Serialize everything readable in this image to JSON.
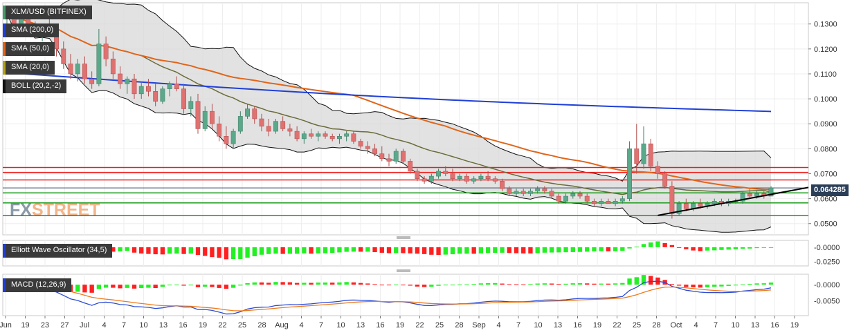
{
  "chart_data": {
    "type": "candlestick",
    "title": "XLM/USD (BITFINEX)",
    "watermark": {
      "fx": "FX",
      "street": "STREET"
    },
    "last_price_label": "0.064285",
    "price_axis": {
      "ylim": [
        0.0455,
        0.1385
      ],
      "ticks": [
        "0.1300",
        "0.1200",
        "0.1100",
        "0.1000",
        "0.0900",
        "0.0800",
        "0.0700",
        "0.0600",
        "0.0500"
      ],
      "tick_values": [
        0.13,
        0.12,
        0.11,
        0.1,
        0.09,
        0.08,
        0.07,
        0.06,
        0.05
      ]
    },
    "x_axis": {
      "labels": [
        "Jun",
        "19",
        "23",
        "27",
        "Jul",
        "4",
        "7",
        "10",
        "13",
        "16",
        "19",
        "22",
        "25",
        "28",
        "Aug",
        "4",
        "7",
        "10",
        "13",
        "16",
        "19",
        "22",
        "25",
        "28",
        "Sep",
        "4",
        "7",
        "10",
        "13",
        "16",
        "19",
        "22",
        "25",
        "28",
        "Oct",
        "4",
        "7",
        "10",
        "13",
        "16",
        "19"
      ]
    },
    "indicators": {
      "sma200": {
        "label": "SMA (200,0)",
        "color": "#1f3fd6"
      },
      "sma50": {
        "label": "SMA (50,0)",
        "color": "#e0651a"
      },
      "sma20": {
        "label": "SMA (20,0)",
        "color": "#6b6b3a"
      },
      "boll": {
        "label": "BOLL (20,2,-2)",
        "color": "#111111"
      }
    },
    "horizontal_levels": {
      "red": [
        0.0725,
        0.0705,
        0.0675
      ],
      "green": [
        0.0623,
        0.0583,
        0.0532
      ],
      "current": 0.0643
    },
    "trendline": {
      "from": [
        0.0533
      ],
      "to": [
        0.0645
      ]
    },
    "candles": [
      [
        0.132,
        0.136,
        0.129,
        0.134
      ],
      [
        0.134,
        0.135,
        0.128,
        0.13
      ],
      [
        0.13,
        0.133,
        0.127,
        0.132
      ],
      [
        0.132,
        0.134,
        0.126,
        0.128
      ],
      [
        0.128,
        0.131,
        0.124,
        0.126
      ],
      [
        0.126,
        0.13,
        0.123,
        0.129
      ],
      [
        0.129,
        0.132,
        0.125,
        0.127
      ],
      [
        0.127,
        0.129,
        0.117,
        0.12
      ],
      [
        0.12,
        0.123,
        0.112,
        0.114
      ],
      [
        0.114,
        0.118,
        0.108,
        0.11
      ],
      [
        0.11,
        0.116,
        0.107,
        0.114
      ],
      [
        0.114,
        0.117,
        0.106,
        0.108
      ],
      [
        0.108,
        0.111,
        0.104,
        0.106
      ],
      [
        0.106,
        0.128,
        0.105,
        0.122
      ],
      [
        0.122,
        0.125,
        0.113,
        0.116
      ],
      [
        0.116,
        0.119,
        0.108,
        0.11
      ],
      [
        0.11,
        0.113,
        0.104,
        0.106
      ],
      [
        0.106,
        0.109,
        0.102,
        0.108
      ],
      [
        0.108,
        0.11,
        0.1,
        0.102
      ],
      [
        0.102,
        0.107,
        0.1,
        0.105
      ],
      [
        0.105,
        0.108,
        0.101,
        0.103
      ],
      [
        0.103,
        0.106,
        0.097,
        0.099
      ],
      [
        0.099,
        0.105,
        0.098,
        0.104
      ],
      [
        0.104,
        0.107,
        0.101,
        0.106
      ],
      [
        0.106,
        0.109,
        0.103,
        0.104
      ],
      [
        0.104,
        0.106,
        0.094,
        0.096
      ],
      [
        0.096,
        0.101,
        0.093,
        0.099
      ],
      [
        0.099,
        0.102,
        0.086,
        0.088
      ],
      [
        0.088,
        0.097,
        0.087,
        0.095
      ],
      [
        0.095,
        0.098,
        0.088,
        0.09
      ],
      [
        0.09,
        0.093,
        0.083,
        0.085
      ],
      [
        0.085,
        0.089,
        0.08,
        0.082
      ],
      [
        0.082,
        0.088,
        0.08,
        0.087
      ],
      [
        0.087,
        0.095,
        0.086,
        0.093
      ],
      [
        0.093,
        0.098,
        0.092,
        0.096
      ],
      [
        0.096,
        0.097,
        0.09,
        0.092
      ],
      [
        0.092,
        0.094,
        0.087,
        0.089
      ],
      [
        0.089,
        0.092,
        0.085,
        0.087
      ],
      [
        0.087,
        0.092,
        0.086,
        0.091
      ],
      [
        0.091,
        0.093,
        0.087,
        0.088
      ],
      [
        0.088,
        0.09,
        0.085,
        0.087
      ],
      [
        0.087,
        0.089,
        0.083,
        0.084
      ],
      [
        0.084,
        0.087,
        0.082,
        0.086
      ],
      [
        0.086,
        0.088,
        0.084,
        0.085
      ],
      [
        0.085,
        0.087,
        0.083,
        0.086
      ],
      [
        0.086,
        0.087,
        0.084,
        0.085
      ],
      [
        0.085,
        0.086,
        0.083,
        0.084
      ],
      [
        0.084,
        0.086,
        0.082,
        0.085
      ],
      [
        0.085,
        0.087,
        0.083,
        0.086
      ],
      [
        0.086,
        0.087,
        0.082,
        0.083
      ],
      [
        0.083,
        0.084,
        0.08,
        0.081
      ],
      [
        0.081,
        0.083,
        0.078,
        0.08
      ],
      [
        0.08,
        0.082,
        0.077,
        0.078
      ],
      [
        0.078,
        0.081,
        0.075,
        0.076
      ],
      [
        0.076,
        0.078,
        0.073,
        0.075
      ],
      [
        0.075,
        0.08,
        0.074,
        0.079
      ],
      [
        0.079,
        0.08,
        0.074,
        0.075
      ],
      [
        0.075,
        0.076,
        0.07,
        0.071
      ],
      [
        0.071,
        0.072,
        0.067,
        0.068
      ],
      [
        0.068,
        0.069,
        0.066,
        0.067
      ],
      [
        0.067,
        0.07,
        0.066,
        0.069
      ],
      [
        0.069,
        0.072,
        0.068,
        0.071
      ],
      [
        0.071,
        0.073,
        0.069,
        0.07
      ],
      [
        0.07,
        0.072,
        0.067,
        0.068
      ],
      [
        0.068,
        0.07,
        0.067,
        0.069
      ],
      [
        0.069,
        0.07,
        0.066,
        0.067
      ],
      [
        0.067,
        0.069,
        0.066,
        0.068
      ],
      [
        0.068,
        0.07,
        0.067,
        0.069
      ],
      [
        0.069,
        0.071,
        0.067,
        0.068
      ],
      [
        0.068,
        0.069,
        0.066,
        0.067
      ],
      [
        0.067,
        0.068,
        0.063,
        0.064
      ],
      [
        0.064,
        0.065,
        0.061,
        0.062
      ],
      [
        0.062,
        0.064,
        0.061,
        0.063
      ],
      [
        0.063,
        0.064,
        0.061,
        0.062
      ],
      [
        0.062,
        0.064,
        0.061,
        0.063
      ],
      [
        0.063,
        0.065,
        0.062,
        0.064
      ],
      [
        0.064,
        0.065,
        0.062,
        0.063
      ],
      [
        0.063,
        0.064,
        0.06,
        0.061
      ],
      [
        0.061,
        0.062,
        0.058,
        0.059
      ],
      [
        0.059,
        0.062,
        0.058,
        0.061
      ],
      [
        0.061,
        0.063,
        0.06,
        0.062
      ],
      [
        0.062,
        0.063,
        0.06,
        0.061
      ],
      [
        0.061,
        0.062,
        0.058,
        0.059
      ],
      [
        0.059,
        0.06,
        0.057,
        0.058
      ],
      [
        0.058,
        0.06,
        0.057,
        0.059
      ],
      [
        0.059,
        0.06,
        0.058,
        0.058
      ],
      [
        0.058,
        0.06,
        0.057,
        0.059
      ],
      [
        0.059,
        0.061,
        0.058,
        0.06
      ],
      [
        0.06,
        0.083,
        0.059,
        0.08
      ],
      [
        0.08,
        0.09,
        0.07,
        0.074
      ],
      [
        0.074,
        0.089,
        0.072,
        0.082
      ],
      [
        0.082,
        0.084,
        0.071,
        0.073
      ],
      [
        0.073,
        0.075,
        0.068,
        0.07
      ],
      [
        0.07,
        0.071,
        0.064,
        0.065
      ],
      [
        0.065,
        0.067,
        0.052,
        0.054
      ],
      [
        0.054,
        0.059,
        0.053,
        0.058
      ],
      [
        0.058,
        0.06,
        0.055,
        0.056
      ],
      [
        0.056,
        0.059,
        0.055,
        0.058
      ],
      [
        0.058,
        0.06,
        0.056,
        0.057
      ],
      [
        0.057,
        0.059,
        0.056,
        0.058
      ],
      [
        0.058,
        0.06,
        0.057,
        0.059
      ],
      [
        0.059,
        0.06,
        0.057,
        0.058
      ],
      [
        0.058,
        0.06,
        0.057,
        0.059
      ],
      [
        0.059,
        0.06,
        0.058,
        0.059
      ],
      [
        0.059,
        0.063,
        0.058,
        0.062
      ],
      [
        0.062,
        0.064,
        0.06,
        0.061
      ],
      [
        0.061,
        0.063,
        0.06,
        0.062
      ],
      [
        0.062,
        0.063,
        0.06,
        0.061
      ],
      [
        0.061,
        0.065,
        0.061,
        0.0643
      ]
    ],
    "oscillators": [
      {
        "name": "Elliott Wave Oscillator",
        "label": "Elliott Wave Oscillator (34,5)",
        "ticks": [
          "-0.0000",
          "-0.0250"
        ],
        "tick_values": [
          0,
          -0.025
        ],
        "range": [
          -0.033,
          0.012
        ]
      },
      {
        "name": "MACD",
        "label": "MACD (12,26,9)",
        "ticks": [
          "-0.0000",
          "-0.0050"
        ],
        "tick_values": [
          0,
          -0.005
        ],
        "range": [
          -0.0095,
          0.0032
        ]
      }
    ]
  }
}
